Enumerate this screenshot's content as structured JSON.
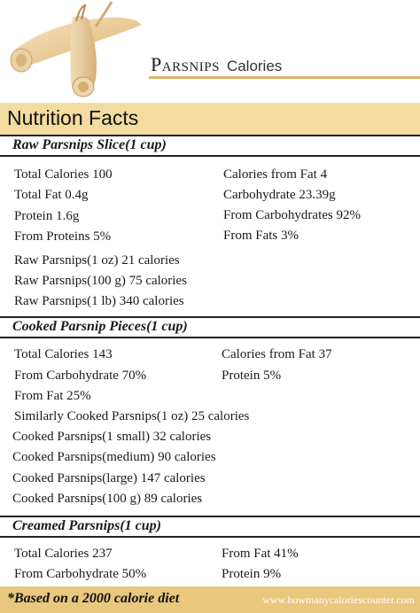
{
  "header": {
    "title": "Parsnips",
    "subtitle": "Calories",
    "image_icon": "parsnip-illustration"
  },
  "nutrition_facts_label": "Nutrition Facts",
  "sections": [
    {
      "heading": "Raw Parsnips Slice(1 cup)",
      "left": [
        "Total Calories 100",
        "Total Fat 0.4g",
        "Protein 1.6g",
        "From Proteins 5%"
      ],
      "right": [
        "Calories from Fat 4",
        "Carbohydrate 23.39g",
        "From Carbohydrates 92%",
        "From Fats 3%"
      ],
      "extra": [
        "Raw Parsnips(1 oz) 21 calories",
        "Raw Parsnips(100 g) 75 calories",
        "Raw Parsnips(1 lb) 340 calories"
      ]
    },
    {
      "heading": "Cooked Parsnip Pieces(1 cup)",
      "left": [
        "Total Calories 143",
        "From Carbohydrate 70%",
        "From Fat 25%"
      ],
      "right": [
        "Calories from Fat 37",
        "Protein 5%"
      ],
      "extra": [
        "Similarly Cooked Parsnips(1 oz) 25 calories",
        "Cooked Parsnips(1 small) 32 calories",
        "Cooked Parsnips(medium) 90 calories",
        "Cooked Parsnips(large) 147 calories",
        "Cooked Parsnips(100 g) 89 calories"
      ]
    },
    {
      "heading": "Creamed Parsnips(1 cup)",
      "left": [
        "Total Calories 237",
        "From Carbohydrate 50%"
      ],
      "right": [
        "From Fat 41%",
        "Protein 9%"
      ],
      "extra": []
    }
  ],
  "footer": {
    "note": "*Based on a 2000 calorie diet",
    "url": "www.howmanycaloriescounter.com"
  },
  "colors": {
    "accent_bar": "#f3dc9f",
    "footer_bar": "#e9c77d",
    "title_rule": "#e3b26b"
  }
}
